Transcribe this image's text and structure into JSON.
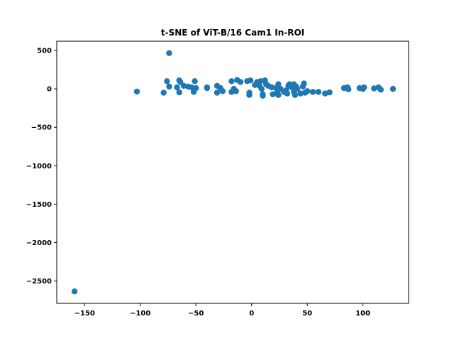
{
  "chart_data": {
    "type": "scatter",
    "title": "t-SNE of ViT-B/16 Cam1 In-ROI",
    "xlabel": "",
    "ylabel": "",
    "xlim": [
      -175,
      141
    ],
    "ylim": [
      -2790,
      620
    ],
    "xticks": [
      -150,
      -100,
      -50,
      0,
      50,
      100
    ],
    "yticks": [
      500,
      0,
      -500,
      -1000,
      -1500,
      -2000,
      -2500
    ],
    "grid": false,
    "marker_color": "#1f77b4",
    "series": [
      {
        "points": [
          [
            -159,
            -2635
          ],
          [
            -74,
            465
          ],
          [
            -103,
            -35
          ],
          [
            -79,
            -50
          ],
          [
            -76,
            100
          ],
          [
            -74,
            30
          ],
          [
            -67,
            20
          ],
          [
            -65,
            110
          ],
          [
            -64,
            90
          ],
          [
            -65,
            -45
          ],
          [
            -61,
            40
          ],
          [
            -57,
            30
          ],
          [
            -54,
            20
          ],
          [
            -52,
            -40
          ],
          [
            -51,
            100
          ],
          [
            -50,
            10
          ],
          [
            -40,
            20
          ],
          [
            -40,
            10
          ],
          [
            -31,
            40
          ],
          [
            -31,
            -50
          ],
          [
            -28,
            10
          ],
          [
            -26,
            -30
          ],
          [
            -18,
            100
          ],
          [
            -18,
            -40
          ],
          [
            -16,
            0
          ],
          [
            -14,
            -30
          ],
          [
            -13,
            115
          ],
          [
            -10,
            90
          ],
          [
            -4,
            100
          ],
          [
            -2,
            -80
          ],
          [
            -2,
            -50
          ],
          [
            -1,
            110
          ],
          [
            3,
            50
          ],
          [
            5,
            90
          ],
          [
            7,
            40
          ],
          [
            8,
            100
          ],
          [
            9,
            0
          ],
          [
            10,
            -70
          ],
          [
            10,
            -90
          ],
          [
            12,
            110
          ],
          [
            13,
            60
          ],
          [
            15,
            40
          ],
          [
            18,
            20
          ],
          [
            19,
            -70
          ],
          [
            22,
            10
          ],
          [
            23,
            -50
          ],
          [
            24,
            60
          ],
          [
            24,
            -80
          ],
          [
            26,
            0
          ],
          [
            29,
            -40
          ],
          [
            31,
            -20
          ],
          [
            32,
            -60
          ],
          [
            33,
            40
          ],
          [
            34,
            60
          ],
          [
            36,
            20
          ],
          [
            38,
            -40
          ],
          [
            38,
            60
          ],
          [
            39,
            -80
          ],
          [
            40,
            30
          ],
          [
            41,
            0
          ],
          [
            44,
            -60
          ],
          [
            46,
            30
          ],
          [
            47,
            70
          ],
          [
            48,
            -50
          ],
          [
            50,
            -30
          ],
          [
            55,
            -40
          ],
          [
            60,
            -40
          ],
          [
            66,
            -60
          ],
          [
            70,
            -45
          ],
          [
            83,
            10
          ],
          [
            86,
            20
          ],
          [
            87,
            -5
          ],
          [
            97,
            10
          ],
          [
            100,
            0
          ],
          [
            101,
            20
          ],
          [
            110,
            5
          ],
          [
            114,
            20
          ],
          [
            116,
            -10
          ],
          [
            127,
            0
          ]
        ]
      }
    ]
  }
}
